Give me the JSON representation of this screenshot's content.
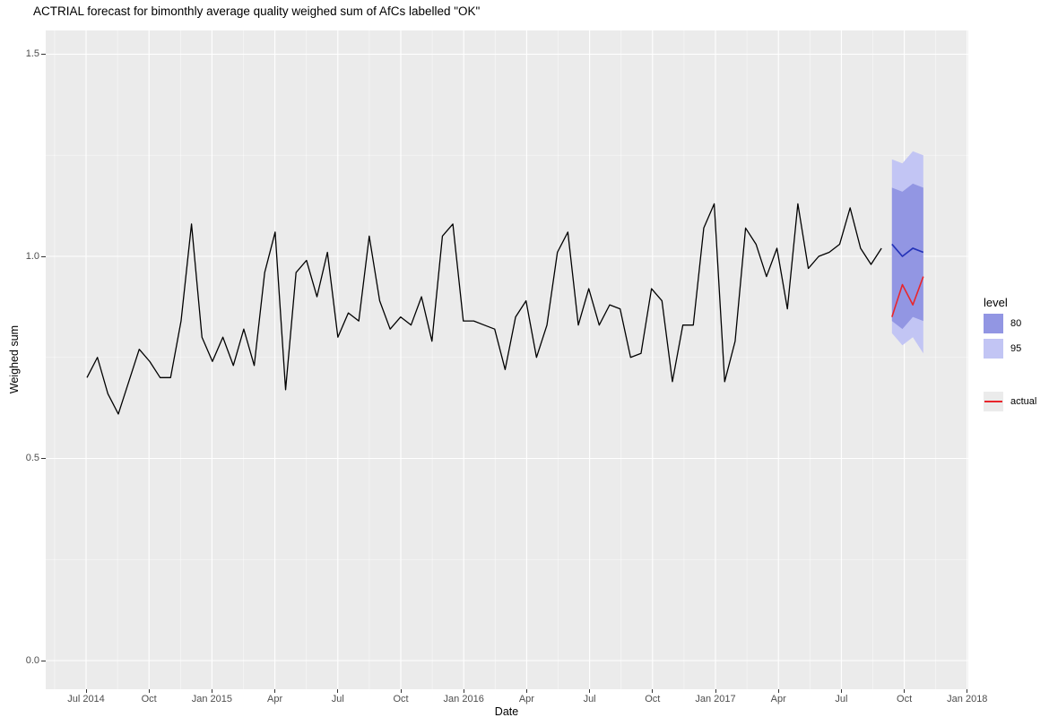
{
  "title": "ACTRIAL forecast for bimonthly average quality weighed sum of AfCs labelled \"OK\"",
  "axes": {
    "x": {
      "label": "Date",
      "tick_labels": [
        "Jul 2014",
        "Oct",
        "Jan 2015",
        "Apr",
        "Jul",
        "Oct",
        "Jan 2016",
        "Apr",
        "Jul",
        "Oct",
        "Jan 2017",
        "Apr",
        "Jul",
        "Oct",
        "Jan 2018"
      ]
    },
    "y": {
      "label": "Weighed sum",
      "tick_labels": [
        "0.0",
        "0.5",
        "1.0",
        "1.5"
      ]
    }
  },
  "legend": {
    "level": {
      "title": "level",
      "entries": [
        {
          "label": "80",
          "color": "#9296e3"
        },
        {
          "label": "95",
          "color": "#c2c5f4"
        }
      ]
    },
    "actual": {
      "label": "actual",
      "color": "#e8262c",
      "key_bg": "#ebebeb"
    }
  },
  "colors": {
    "panel": "#ebebeb",
    "grid_major": "#ffffff",
    "grid_minor": "#ffffff",
    "observed": "#000000",
    "mean": "#2433b8",
    "actual": "#e8262c",
    "band80": "#9296e3",
    "band95": "#c2c5f4",
    "tick_text": "#4d4d4d"
  },
  "chart_data": {
    "type": "line",
    "title": "ACTRIAL forecast for bimonthly average quality weighed sum of AfCs labelled \"OK\"",
    "xlabel": "Date",
    "ylabel": "Weighed sum",
    "x_tick_labels": [
      "Jul 2014",
      "Oct",
      "Jan 2015",
      "Apr",
      "Jul",
      "Oct",
      "Jan 2016",
      "Apr",
      "Jul",
      "Oct",
      "Jan 2017",
      "Apr",
      "Jul",
      "Oct",
      "Jan 2018"
    ],
    "y_tick_labels": [
      "0.0",
      "0.5",
      "1.0",
      "1.5"
    ],
    "y_ticks": [
      0.0,
      0.5,
      1.0,
      1.5
    ],
    "y_range_shown": [
      -0.07,
      1.56
    ],
    "x_range_shown": [
      "2014-05",
      "2018-01"
    ],
    "grid": true,
    "legend_position": "right",
    "sampling_interval": "semimonthly (two points per month)",
    "observed": {
      "name": "observed",
      "start_date": "2014-07-01",
      "end_date": "2017-09-01",
      "values": [
        0.7,
        0.75,
        0.66,
        0.61,
        0.69,
        0.77,
        0.74,
        0.7,
        0.7,
        0.84,
        1.08,
        0.8,
        0.74,
        0.8,
        0.73,
        0.82,
        0.73,
        0.96,
        1.06,
        0.67,
        0.96,
        0.99,
        0.9,
        1.01,
        0.8,
        0.86,
        0.84,
        1.05,
        0.89,
        0.82,
        0.85,
        0.83,
        0.9,
        0.79,
        1.05,
        1.08,
        0.84,
        0.84,
        0.83,
        0.82,
        0.72,
        0.85,
        0.89,
        0.75,
        0.83,
        1.01,
        1.06,
        0.83,
        0.92,
        0.83,
        0.88,
        0.87,
        0.75,
        0.76,
        0.92,
        0.89,
        0.69,
        0.83,
        0.83,
        1.07,
        1.13,
        0.69,
        0.79,
        1.07,
        1.03,
        0.95,
        1.02,
        0.87,
        1.13,
        0.97,
        1.0,
        1.01,
        1.03,
        1.12,
        1.02,
        0.98,
        1.02
      ]
    },
    "forecast": {
      "name": "forecast mean",
      "dates": [
        "2017-09-16",
        "2017-10-01",
        "2017-10-16",
        "2017-11-01"
      ],
      "mean": [
        1.03,
        1.0,
        1.02,
        1.01
      ],
      "levels": [
        80,
        95
      ],
      "hi80": [
        1.17,
        1.16,
        1.18,
        1.17
      ],
      "lo80": [
        0.84,
        0.82,
        0.85,
        0.84
      ],
      "hi95": [
        1.24,
        1.23,
        1.26,
        1.25
      ],
      "lo95": [
        0.81,
        0.78,
        0.8,
        0.76
      ]
    },
    "actual": {
      "name": "actual",
      "dates": [
        "2017-09-16",
        "2017-10-01",
        "2017-10-16",
        "2017-11-01"
      ],
      "values": [
        0.85,
        0.93,
        0.88,
        0.95
      ]
    }
  }
}
